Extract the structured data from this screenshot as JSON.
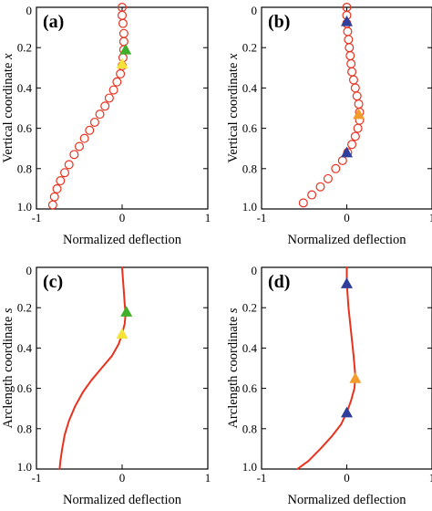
{
  "chart_data": [
    {
      "id": "a",
      "type": "scatter",
      "panel_label": "(a)",
      "xlabel": "Normalized deflection",
      "ylabel_main": "Vertical coordinate",
      "ylabel_var": "x",
      "xlim": [
        -1,
        1
      ],
      "ylim": [
        0,
        1
      ],
      "y_inverted": true,
      "xticks": [
        -1,
        0,
        1
      ],
      "yticks": [
        0,
        0.2,
        0.4,
        0.6,
        0.8,
        1.0
      ],
      "ytick_labels": [
        "0",
        "0.2",
        "0.4",
        "0.6",
        "0.8",
        "1.0"
      ],
      "series_color": "#e8321e",
      "points": [
        [
          0.0,
          0.0
        ],
        [
          0.0,
          0.04
        ],
        [
          0.01,
          0.08
        ],
        [
          0.02,
          0.13
        ],
        [
          0.02,
          0.17
        ],
        [
          0.02,
          0.21
        ],
        [
          0.01,
          0.25
        ],
        [
          0.0,
          0.29
        ],
        [
          -0.02,
          0.33
        ],
        [
          -0.06,
          0.37
        ],
        [
          -0.1,
          0.41
        ],
        [
          -0.15,
          0.45
        ],
        [
          -0.2,
          0.49
        ],
        [
          -0.26,
          0.53
        ],
        [
          -0.32,
          0.57
        ],
        [
          -0.38,
          0.61
        ],
        [
          -0.44,
          0.65
        ],
        [
          -0.5,
          0.69
        ],
        [
          -0.56,
          0.73
        ],
        [
          -0.62,
          0.78
        ],
        [
          -0.67,
          0.82
        ],
        [
          -0.72,
          0.86
        ],
        [
          -0.76,
          0.9
        ],
        [
          -0.79,
          0.94
        ],
        [
          -0.81,
          0.98
        ]
      ],
      "markers": [
        {
          "x": 0.04,
          "y": 0.21,
          "color": "#3fae2a"
        },
        {
          "x": 0.0,
          "y": 0.28,
          "color": "#f6e33a"
        }
      ]
    },
    {
      "id": "b",
      "type": "scatter",
      "panel_label": "(b)",
      "xlabel": "Normalized deflection",
      "ylabel_main": "Vertical coordinate",
      "ylabel_var": "x",
      "xlim": [
        -1,
        1
      ],
      "ylim": [
        0,
        1
      ],
      "y_inverted": true,
      "xticks": [
        -1,
        0,
        1
      ],
      "yticks": [
        0,
        0.2,
        0.4,
        0.6,
        0.8,
        1.0
      ],
      "ytick_labels": [
        "0",
        "0.2",
        "0.4",
        "0.6",
        "0.8",
        "1.0"
      ],
      "series_color": "#e8321e",
      "points": [
        [
          0.0,
          0.0
        ],
        [
          0.0,
          0.04
        ],
        [
          0.0,
          0.08
        ],
        [
          0.01,
          0.12
        ],
        [
          0.02,
          0.16
        ],
        [
          0.03,
          0.2
        ],
        [
          0.04,
          0.24
        ],
        [
          0.05,
          0.28
        ],
        [
          0.06,
          0.32
        ],
        [
          0.08,
          0.36
        ],
        [
          0.1,
          0.4
        ],
        [
          0.12,
          0.44
        ],
        [
          0.14,
          0.48
        ],
        [
          0.15,
          0.52
        ],
        [
          0.15,
          0.56
        ],
        [
          0.13,
          0.6
        ],
        [
          0.1,
          0.64
        ],
        [
          0.06,
          0.68
        ],
        [
          0.01,
          0.72
        ],
        [
          -0.05,
          0.76
        ],
        [
          -0.13,
          0.8
        ],
        [
          -0.22,
          0.85
        ],
        [
          -0.31,
          0.89
        ],
        [
          -0.41,
          0.93
        ],
        [
          -0.51,
          0.97
        ]
      ],
      "markers": [
        {
          "x": 0.0,
          "y": 0.07,
          "color": "#2e3e9c"
        },
        {
          "x": 0.14,
          "y": 0.53,
          "color": "#f39c2b"
        },
        {
          "x": 0.0,
          "y": 0.72,
          "color": "#2e3e9c"
        }
      ]
    },
    {
      "id": "c",
      "type": "line",
      "panel_label": "(c)",
      "xlabel": "Normalized deflection",
      "ylabel_main": "Arclength coordinate",
      "ylabel_var": "s",
      "xlim": [
        -1,
        1
      ],
      "ylim": [
        0,
        1
      ],
      "y_inverted": true,
      "xticks": [
        -1,
        0,
        1
      ],
      "yticks": [
        0,
        0.2,
        0.4,
        0.6,
        0.8,
        1.0
      ],
      "ytick_labels": [
        "0",
        "0.2",
        "0.4",
        "0.6",
        "0.8",
        "1.0"
      ],
      "series_color": "#e8321e",
      "points": [
        [
          0.0,
          0.0
        ],
        [
          0.01,
          0.06
        ],
        [
          0.02,
          0.12
        ],
        [
          0.03,
          0.18
        ],
        [
          0.04,
          0.23
        ],
        [
          0.03,
          0.28
        ],
        [
          0.0,
          0.33
        ],
        [
          -0.04,
          0.38
        ],
        [
          -0.12,
          0.44
        ],
        [
          -0.24,
          0.5
        ],
        [
          -0.36,
          0.56
        ],
        [
          -0.46,
          0.62
        ],
        [
          -0.55,
          0.69
        ],
        [
          -0.62,
          0.76
        ],
        [
          -0.67,
          0.83
        ],
        [
          -0.7,
          0.9
        ],
        [
          -0.72,
          0.96
        ],
        [
          -0.73,
          1.0
        ]
      ],
      "markers": [
        {
          "x": 0.05,
          "y": 0.22,
          "color": "#3fae2a"
        },
        {
          "x": 0.0,
          "y": 0.33,
          "color": "#f6e33a"
        }
      ]
    },
    {
      "id": "d",
      "type": "line",
      "panel_label": "(d)",
      "xlabel": "Normalized deflection",
      "ylabel_main": "Arclength coordinate",
      "ylabel_var": "s",
      "xlim": [
        -1,
        1
      ],
      "ylim": [
        0,
        1
      ],
      "y_inverted": true,
      "xticks": [
        -1,
        0,
        1
      ],
      "yticks": [
        0,
        0.2,
        0.4,
        0.6,
        0.8,
        1.0
      ],
      "ytick_labels": [
        "0",
        "0.2",
        "0.4",
        "0.6",
        "0.8",
        "1.0"
      ],
      "series_color": "#e8321e",
      "points": [
        [
          0.0,
          0.0
        ],
        [
          0.0,
          0.08
        ],
        [
          0.02,
          0.2
        ],
        [
          0.05,
          0.32
        ],
        [
          0.08,
          0.44
        ],
        [
          0.1,
          0.54
        ],
        [
          0.09,
          0.6
        ],
        [
          0.05,
          0.66
        ],
        [
          0.0,
          0.72
        ],
        [
          -0.07,
          0.78
        ],
        [
          -0.18,
          0.84
        ],
        [
          -0.31,
          0.9
        ],
        [
          -0.45,
          0.96
        ],
        [
          -0.58,
          1.0
        ]
      ],
      "markers": [
        {
          "x": 0.0,
          "y": 0.08,
          "color": "#2e3e9c"
        },
        {
          "x": 0.1,
          "y": 0.55,
          "color": "#f39c2b"
        },
        {
          "x": 0.0,
          "y": 0.72,
          "color": "#2e3e9c"
        }
      ]
    }
  ]
}
